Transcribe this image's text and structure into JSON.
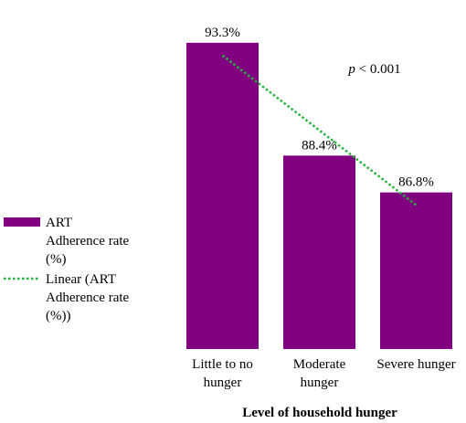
{
  "chart_data": {
    "type": "bar",
    "title": "",
    "xlabel": "Level of household hunger",
    "ylabel": "",
    "ylim": [
      80,
      95
    ],
    "categories": [
      [
        "Little to no",
        "hunger"
      ],
      [
        "Moderate",
        "hunger"
      ],
      [
        "Severe hunger"
      ]
    ],
    "series": [
      {
        "name": [
          "ART",
          "Adherence rate",
          "(%)"
        ],
        "values": [
          93.3,
          88.4,
          86.8
        ],
        "data_labels": [
          "93.3%",
          "88.4%",
          "86.8%"
        ],
        "color": "#800080"
      }
    ],
    "trendline": {
      "name": [
        "Linear (ART",
        "Adherence rate",
        "(%))"
      ],
      "type": "linear",
      "color": "#22b43c",
      "style": "dotted"
    },
    "annotation": {
      "p_symbol": "p",
      "p_text": " < 0.001"
    },
    "legend_position": "left",
    "grid": false
  }
}
